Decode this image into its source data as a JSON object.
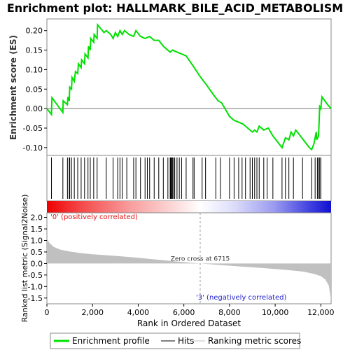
{
  "chart_data": {
    "type": "line",
    "title": "Enrichment plot: HALLMARK_BILE_ACID_METABOLISM",
    "panels": {
      "enrichment": {
        "ylabel": "Enrichment score (ES)",
        "ylim": [
          -0.12,
          0.23
        ],
        "yticks": [
          -0.1,
          -0.05,
          0.0,
          0.05,
          0.1,
          0.15,
          0.2
        ],
        "ytick_labels": [
          "-0.10",
          "-0.05",
          "0.00",
          "0.05",
          "0.10",
          "0.15",
          "0.20"
        ],
        "series_name": "Enrichment profile",
        "color": "#00e000",
        "points": [
          [
            0,
            0.0
          ],
          [
            200,
            -0.015
          ],
          [
            220,
            0.028
          ],
          [
            700,
            -0.01
          ],
          [
            710,
            0.02
          ],
          [
            900,
            0.01
          ],
          [
            920,
            0.03
          ],
          [
            980,
            0.02
          ],
          [
            1000,
            0.055
          ],
          [
            1080,
            0.05
          ],
          [
            1100,
            0.08
          ],
          [
            1200,
            0.07
          ],
          [
            1250,
            0.095
          ],
          [
            1350,
            0.09
          ],
          [
            1380,
            0.115
          ],
          [
            1500,
            0.105
          ],
          [
            1520,
            0.125
          ],
          [
            1650,
            0.115
          ],
          [
            1670,
            0.14
          ],
          [
            1800,
            0.13
          ],
          [
            1820,
            0.16
          ],
          [
            1900,
            0.15
          ],
          [
            1920,
            0.18
          ],
          [
            2050,
            0.17
          ],
          [
            2070,
            0.19
          ],
          [
            2200,
            0.18
          ],
          [
            2220,
            0.215
          ],
          [
            2500,
            0.195
          ],
          [
            2600,
            0.2
          ],
          [
            2800,
            0.19
          ],
          [
            2900,
            0.18
          ],
          [
            3000,
            0.195
          ],
          [
            3100,
            0.185
          ],
          [
            3200,
            0.2
          ],
          [
            3300,
            0.19
          ],
          [
            3400,
            0.2
          ],
          [
            3600,
            0.19
          ],
          [
            3800,
            0.185
          ],
          [
            3900,
            0.2
          ],
          [
            4100,
            0.185
          ],
          [
            4300,
            0.18
          ],
          [
            4500,
            0.185
          ],
          [
            4700,
            0.175
          ],
          [
            4900,
            0.175
          ],
          [
            5100,
            0.16
          ],
          [
            5300,
            0.15
          ],
          [
            5400,
            0.145
          ],
          [
            5500,
            0.15
          ],
          [
            5700,
            0.145
          ],
          [
            5900,
            0.14
          ],
          [
            6100,
            0.135
          ],
          [
            6400,
            0.11
          ],
          [
            6715,
            0.082
          ],
          [
            7000,
            0.06
          ],
          [
            7300,
            0.035
          ],
          [
            7500,
            0.02
          ],
          [
            7650,
            0.015
          ],
          [
            7800,
            0.0
          ],
          [
            8000,
            -0.02
          ],
          [
            8200,
            -0.03
          ],
          [
            8400,
            -0.035
          ],
          [
            8600,
            -0.04
          ],
          [
            8800,
            -0.05
          ],
          [
            9000,
            -0.06
          ],
          [
            9100,
            -0.055
          ],
          [
            9200,
            -0.06
          ],
          [
            9300,
            -0.045
          ],
          [
            9500,
            -0.055
          ],
          [
            9700,
            -0.05
          ],
          [
            9900,
            -0.07
          ],
          [
            10100,
            -0.085
          ],
          [
            10300,
            -0.1
          ],
          [
            10450,
            -0.075
          ],
          [
            10600,
            -0.08
          ],
          [
            10700,
            -0.06
          ],
          [
            10800,
            -0.07
          ],
          [
            10900,
            -0.055
          ],
          [
            11100,
            -0.07
          ],
          [
            11300,
            -0.085
          ],
          [
            11500,
            -0.1
          ],
          [
            11600,
            -0.105
          ],
          [
            11700,
            -0.09
          ],
          [
            11800,
            -0.06
          ],
          [
            11820,
            -0.08
          ],
          [
            11900,
            -0.07
          ],
          [
            11950,
            0.005
          ],
          [
            12000,
            0.0
          ],
          [
            12050,
            0.03
          ],
          [
            12300,
            0.01
          ],
          [
            12450,
            0.0
          ]
        ]
      },
      "hits": {
        "series_name": "Hits",
        "positions": [
          200,
          700,
          900,
          980,
          1000,
          1080,
          1200,
          1350,
          1500,
          1650,
          1800,
          1900,
          2050,
          2200,
          2600,
          2900,
          3100,
          3200,
          3300,
          3500,
          3800,
          3900,
          4100,
          4300,
          4400,
          4500,
          4700,
          4900,
          5100,
          5300,
          5400,
          5420,
          5450,
          5480,
          5500,
          5550,
          5600,
          5700,
          5800,
          5900,
          6100,
          6400,
          6450,
          6800,
          6950,
          7400,
          7600,
          8000,
          8200,
          8400,
          8550,
          8700,
          8900,
          9000,
          9100,
          9200,
          9300,
          9500,
          9650,
          9900,
          10300,
          10450,
          10600,
          10800,
          11200,
          11600,
          11750,
          11850,
          11900,
          11950,
          12000
        ]
      },
      "ranked_metric": {
        "ylabel": "Ranked list metric (Signal2Noise)",
        "series_name": "Ranking metric scores",
        "ylim": [
          -1.75,
          2.2
        ],
        "yticks": [
          -1.5,
          -1.0,
          -0.5,
          0.0,
          0.5,
          1.0,
          1.5,
          2.0
        ],
        "ytick_labels": [
          "-1.5",
          "-1.0",
          "-0.5",
          "0.0",
          "0.5",
          "1.0",
          "1.5",
          "2.0"
        ],
        "curve": [
          [
            0,
            1.1
          ],
          [
            100,
            0.9
          ],
          [
            300,
            0.72
          ],
          [
            600,
            0.6
          ],
          [
            1000,
            0.52
          ],
          [
            1500,
            0.45
          ],
          [
            2000,
            0.4
          ],
          [
            3000,
            0.33
          ],
          [
            4000,
            0.25
          ],
          [
            5000,
            0.15
          ],
          [
            6000,
            0.06
          ],
          [
            6715,
            0.0
          ],
          [
            7500,
            -0.06
          ],
          [
            8500,
            -0.13
          ],
          [
            9500,
            -0.2
          ],
          [
            10500,
            -0.28
          ],
          [
            11200,
            -0.35
          ],
          [
            11700,
            -0.45
          ],
          [
            12000,
            -0.55
          ],
          [
            12200,
            -0.7
          ],
          [
            12350,
            -0.95
          ],
          [
            12450,
            -1.6
          ]
        ],
        "zero_cross_label": "Zero cross at 6715",
        "zero_cross": 6715,
        "pos_label": "'0' (positively correlated)",
        "neg_label": "'3' (negatively correlated)"
      }
    },
    "xlabel": "Rank in Ordered Dataset",
    "xlim": [
      0,
      12450
    ],
    "xticks": [
      0,
      2000,
      4000,
      6000,
      8000,
      10000,
      12000
    ],
    "xtick_labels": [
      "0",
      "2,000",
      "4,000",
      "6,000",
      "8,000",
      "10,000",
      "12,000"
    ],
    "legend": {
      "placement": "bottom",
      "items": [
        "Enrichment profile",
        "Hits",
        "Ranking metric scores"
      ],
      "colors": [
        "#00e000",
        "#000000",
        "#c0c0c0"
      ]
    }
  }
}
